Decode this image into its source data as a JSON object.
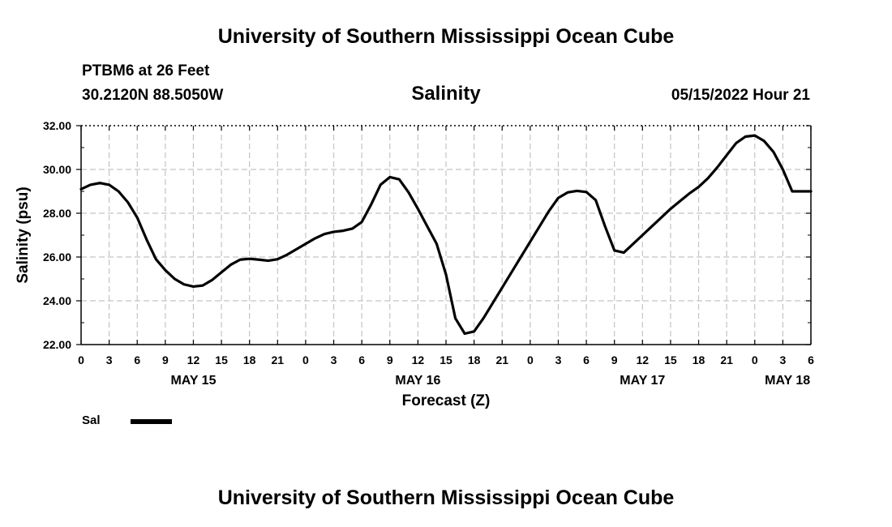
{
  "header": {
    "title": "University of Southern Mississippi Ocean Cube",
    "station": "PTBM6 at 26 Feet",
    "coordinates": "30.2120N  88.5050W",
    "valid_time": "05/15/2022 Hour 21"
  },
  "footer": {
    "title": "University of Southern Mississippi Ocean Cube"
  },
  "legend": {
    "label": "Sal",
    "color": "#000000"
  },
  "chart_data": {
    "type": "line",
    "title": "Salinity",
    "xlabel": "Forecast (Z)",
    "ylabel": "Salinity (psu)",
    "x_unit": "forecast hours from May 15 00Z",
    "xlim": [
      0,
      78
    ],
    "ylim": [
      22,
      32
    ],
    "grid": true,
    "y_ticks": [
      22,
      24,
      26,
      28,
      30,
      32
    ],
    "y_tick_labels": [
      "22.00",
      "24.00",
      "26.00",
      "28.00",
      "30.00",
      "32.00"
    ],
    "x_ticks": [
      0,
      3,
      6,
      9,
      12,
      15,
      18,
      21,
      24,
      27,
      30,
      33,
      36,
      39,
      42,
      45,
      48,
      51,
      54,
      57,
      60,
      63,
      66,
      69,
      72,
      75,
      78
    ],
    "x_tick_labels": [
      "0",
      "3",
      "6",
      "9",
      "12",
      "15",
      "18",
      "21",
      "0",
      "3",
      "6",
      "9",
      "12",
      "15",
      "18",
      "21",
      "0",
      "3",
      "6",
      "9",
      "12",
      "15",
      "18",
      "21",
      "0",
      "3",
      "6"
    ],
    "date_labels": [
      {
        "x": 12,
        "label": "MAY 15"
      },
      {
        "x": 36,
        "label": "MAY 16"
      },
      {
        "x": 60,
        "label": "MAY 17"
      },
      {
        "x": 75.5,
        "label": "MAY 18"
      }
    ],
    "series": [
      {
        "name": "Sal",
        "color": "#000000",
        "x": [
          0,
          1,
          2,
          3,
          4,
          5,
          6,
          7,
          8,
          9,
          10,
          11,
          12,
          13,
          14,
          15,
          16,
          17,
          18,
          19,
          20,
          21,
          22,
          23,
          24,
          25,
          26,
          27,
          28,
          29,
          30,
          31,
          32,
          33,
          34,
          35,
          36,
          37,
          38,
          39,
          40,
          41,
          42,
          43,
          44,
          45,
          46,
          47,
          48,
          49,
          50,
          51,
          52,
          53,
          54,
          55,
          56,
          57,
          58,
          59,
          60,
          61,
          62,
          63,
          64,
          65,
          66,
          67,
          68,
          69,
          70,
          71,
          72,
          73,
          74,
          75,
          76,
          77,
          78
        ],
        "values": [
          29.1,
          29.3,
          29.38,
          29.3,
          29.0,
          28.5,
          27.8,
          26.8,
          25.9,
          25.4,
          25.0,
          24.75,
          24.65,
          24.7,
          24.95,
          25.3,
          25.65,
          25.88,
          25.92,
          25.88,
          25.83,
          25.9,
          26.1,
          26.35,
          26.6,
          26.85,
          27.05,
          27.15,
          27.2,
          27.3,
          27.6,
          28.4,
          29.3,
          29.65,
          29.55,
          28.95,
          28.2,
          27.4,
          26.6,
          25.2,
          23.2,
          22.5,
          22.6,
          23.2,
          23.9,
          24.6,
          25.3,
          26.0,
          26.7,
          27.4,
          28.1,
          28.7,
          28.95,
          29.02,
          28.97,
          28.6,
          27.4,
          26.3,
          26.2,
          26.6,
          27.0,
          27.4,
          27.8,
          28.2,
          28.55,
          28.9,
          29.2,
          29.6,
          30.1,
          30.65,
          31.2,
          31.5,
          31.55,
          31.3,
          30.8,
          30.0,
          29.0,
          29.0,
          29.0
        ]
      }
    ]
  }
}
